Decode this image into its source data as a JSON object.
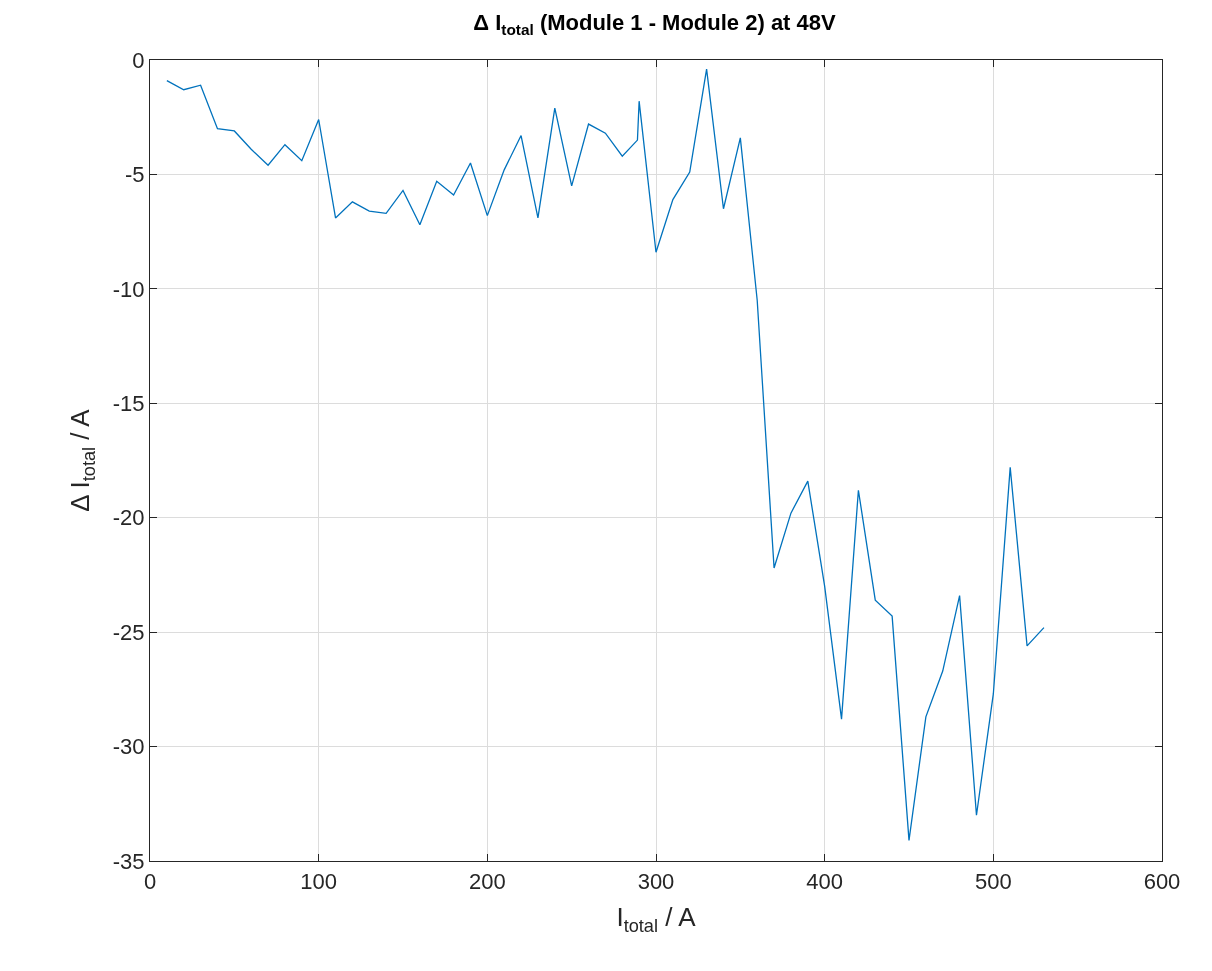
{
  "chart_data": {
    "type": "line",
    "title": "Δ I$_{total}$ (Module 1 - Module 2) at 48V",
    "xlabel": "I$_{total}$ / A",
    "ylabel": "Δ I$_{total}$ / A",
    "x": [
      10,
      20,
      30,
      40,
      50,
      60,
      70,
      80,
      90,
      100,
      110,
      120,
      130,
      140,
      150,
      160,
      170,
      180,
      190,
      200,
      210,
      220,
      230,
      240,
      250,
      260,
      270,
      280,
      289,
      290,
      300,
      310,
      320,
      330,
      340,
      350,
      360,
      370,
      380,
      390,
      400,
      410,
      420,
      430,
      440,
      450,
      460,
      470,
      480,
      490,
      500,
      510,
      520,
      530
    ],
    "series": [
      {
        "color": "#0072bd",
        "values": [
          -0.9,
          -1.3,
          -1.1,
          -3.0,
          -3.1,
          -3.9,
          -4.6,
          -3.7,
          -4.4,
          -2.6,
          -6.9,
          -6.2,
          -6.6,
          -6.7,
          -5.7,
          -7.2,
          -5.3,
          -5.9,
          -4.5,
          -6.8,
          -4.8,
          -3.3,
          -6.9,
          -2.1,
          -5.5,
          -2.8,
          -3.2,
          -4.2,
          -3.5,
          -1.8,
          -8.4,
          -6.1,
          -4.9,
          -0.4,
          -6.5,
          -3.4,
          -10.5,
          -22.2,
          -19.8,
          -18.4,
          -23.0,
          -28.8,
          -18.8,
          -23.6,
          -24.3,
          -34.1,
          -28.7,
          -26.7,
          -23.4,
          -33.0,
          -27.7,
          -17.8,
          -25.6,
          -24.8
        ]
      }
    ],
    "xlim": [
      0,
      600
    ],
    "xticks": [
      0,
      100,
      200,
      300,
      400,
      500,
      600
    ],
    "ylim": [
      -35,
      0
    ],
    "yticks": [
      -35,
      -30,
      -25,
      -20,
      -15,
      -10,
      -5,
      0
    ],
    "grid": true,
    "legend": false,
    "marker": "none",
    "line_style": "solid"
  }
}
